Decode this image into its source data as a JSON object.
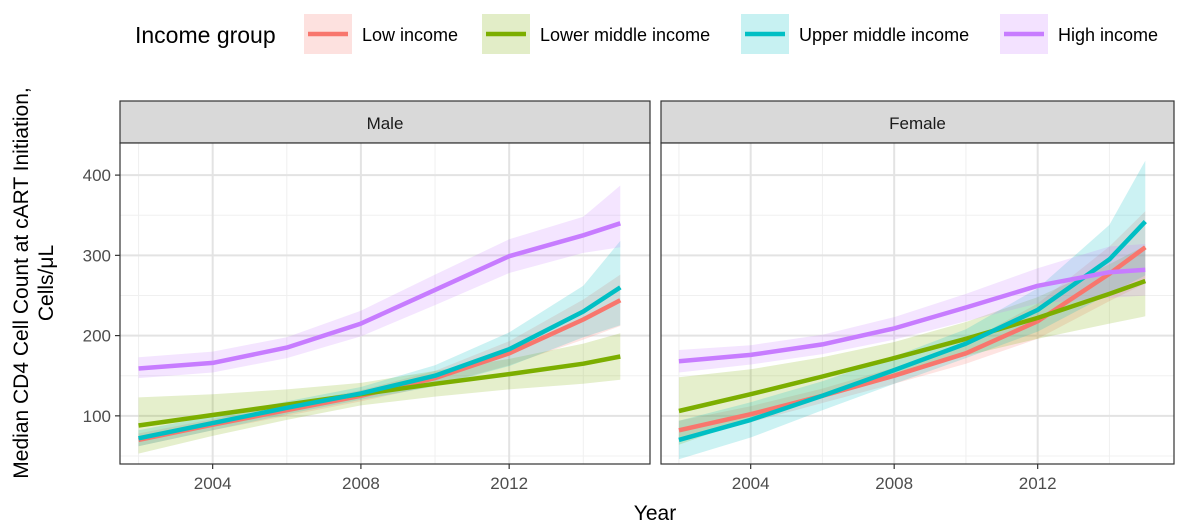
{
  "chart_data": {
    "type": "line",
    "legend": {
      "title": "Income group",
      "placement": "top",
      "entries": [
        "Low income",
        "Lower middle income",
        "Upper middle income",
        "High income"
      ]
    },
    "xlabel": "Year",
    "ylabel_lines": [
      "Median CD4 Cell Count at cART Initiation,",
      "Cells/μL"
    ],
    "xlim": [
      2001.5,
      2015.8
    ],
    "ylim": [
      40,
      440
    ],
    "x_ticks": [
      2004,
      2008,
      2012
    ],
    "y_ticks": [
      100,
      200,
      300,
      400
    ],
    "grid": true,
    "colors": {
      "Low income": "#f8766d",
      "Lower middle income": "#7cae00",
      "Upper middle income": "#00bfc4",
      "High income": "#c77cff"
    },
    "panels": [
      {
        "label": "Male",
        "x": [
          2002,
          2004,
          2006,
          2008,
          2010,
          2012,
          2014,
          2015
        ],
        "series": [
          {
            "name": "Low income",
            "values": [
              70,
              89,
              107,
              125,
              147,
              178,
              220,
              244
            ],
            "lower": [
              62,
              82,
              100,
              118,
              138,
              163,
              195,
              212
            ],
            "upper": [
              78,
              96,
              114,
              132,
              156,
              193,
              245,
              276
            ]
          },
          {
            "name": "Lower middle income",
            "values": [
              88,
              101,
              114,
              127,
              140,
              152,
              165,
              174
            ],
            "lower": [
              53,
              75,
              95,
              113,
              124,
              133,
              140,
              145
            ],
            "upper": [
              123,
              127,
              133,
              141,
              156,
              171,
              190,
              203
            ]
          },
          {
            "name": "Upper middle income",
            "values": [
              72,
              91,
              110,
              128,
              150,
              183,
              230,
              260
            ],
            "lower": [
              62,
              82,
              102,
              120,
              137,
              162,
              198,
              213
            ],
            "upper": [
              82,
              100,
              118,
              136,
              163,
              204,
              262,
              318
            ]
          },
          {
            "name": "High income",
            "values": [
              159,
              166,
              185,
              215,
              257,
              299,
              325,
              340
            ],
            "lower": [
              147,
              154,
              172,
              199,
              238,
              278,
              303,
              310
            ],
            "upper": [
              173,
              180,
              198,
              231,
              276,
              320,
              348,
              387
            ]
          }
        ]
      },
      {
        "label": "Female",
        "x": [
          2002,
          2004,
          2006,
          2008,
          2010,
          2012,
          2014,
          2015
        ],
        "series": [
          {
            "name": "Low income",
            "values": [
              82,
              102,
              125,
              150,
              178,
              218,
              277,
              310
            ],
            "lower": [
              70,
              92,
              116,
              140,
              165,
              196,
              243,
              265
            ],
            "upper": [
              94,
              112,
              134,
              160,
              191,
              240,
              311,
              355
            ]
          },
          {
            "name": "Lower middle income",
            "values": [
              106,
              127,
              149,
              172,
              196,
              222,
              252,
              268
            ],
            "lower": [
              64,
              96,
              125,
              152,
              175,
              196,
              215,
              224
            ],
            "upper": [
              148,
              158,
              173,
              192,
              217,
              248,
              289,
              312
            ]
          },
          {
            "name": "Upper middle income",
            "values": [
              70,
              95,
              125,
              157,
              190,
              232,
              295,
              342
            ],
            "lower": [
              46,
              73,
              107,
              140,
              172,
              205,
              252,
              275
            ],
            "upper": [
              94,
              117,
              143,
              174,
              208,
              259,
              338,
              418
            ]
          },
          {
            "name": "High income",
            "values": [
              168,
              176,
              189,
              209,
              235,
              262,
              279,
              282
            ],
            "lower": [
              154,
              164,
              177,
              195,
              218,
              240,
              247,
              250
            ],
            "upper": [
              182,
              188,
              201,
              223,
              252,
              284,
              311,
              314
            ]
          }
        ]
      }
    ]
  }
}
